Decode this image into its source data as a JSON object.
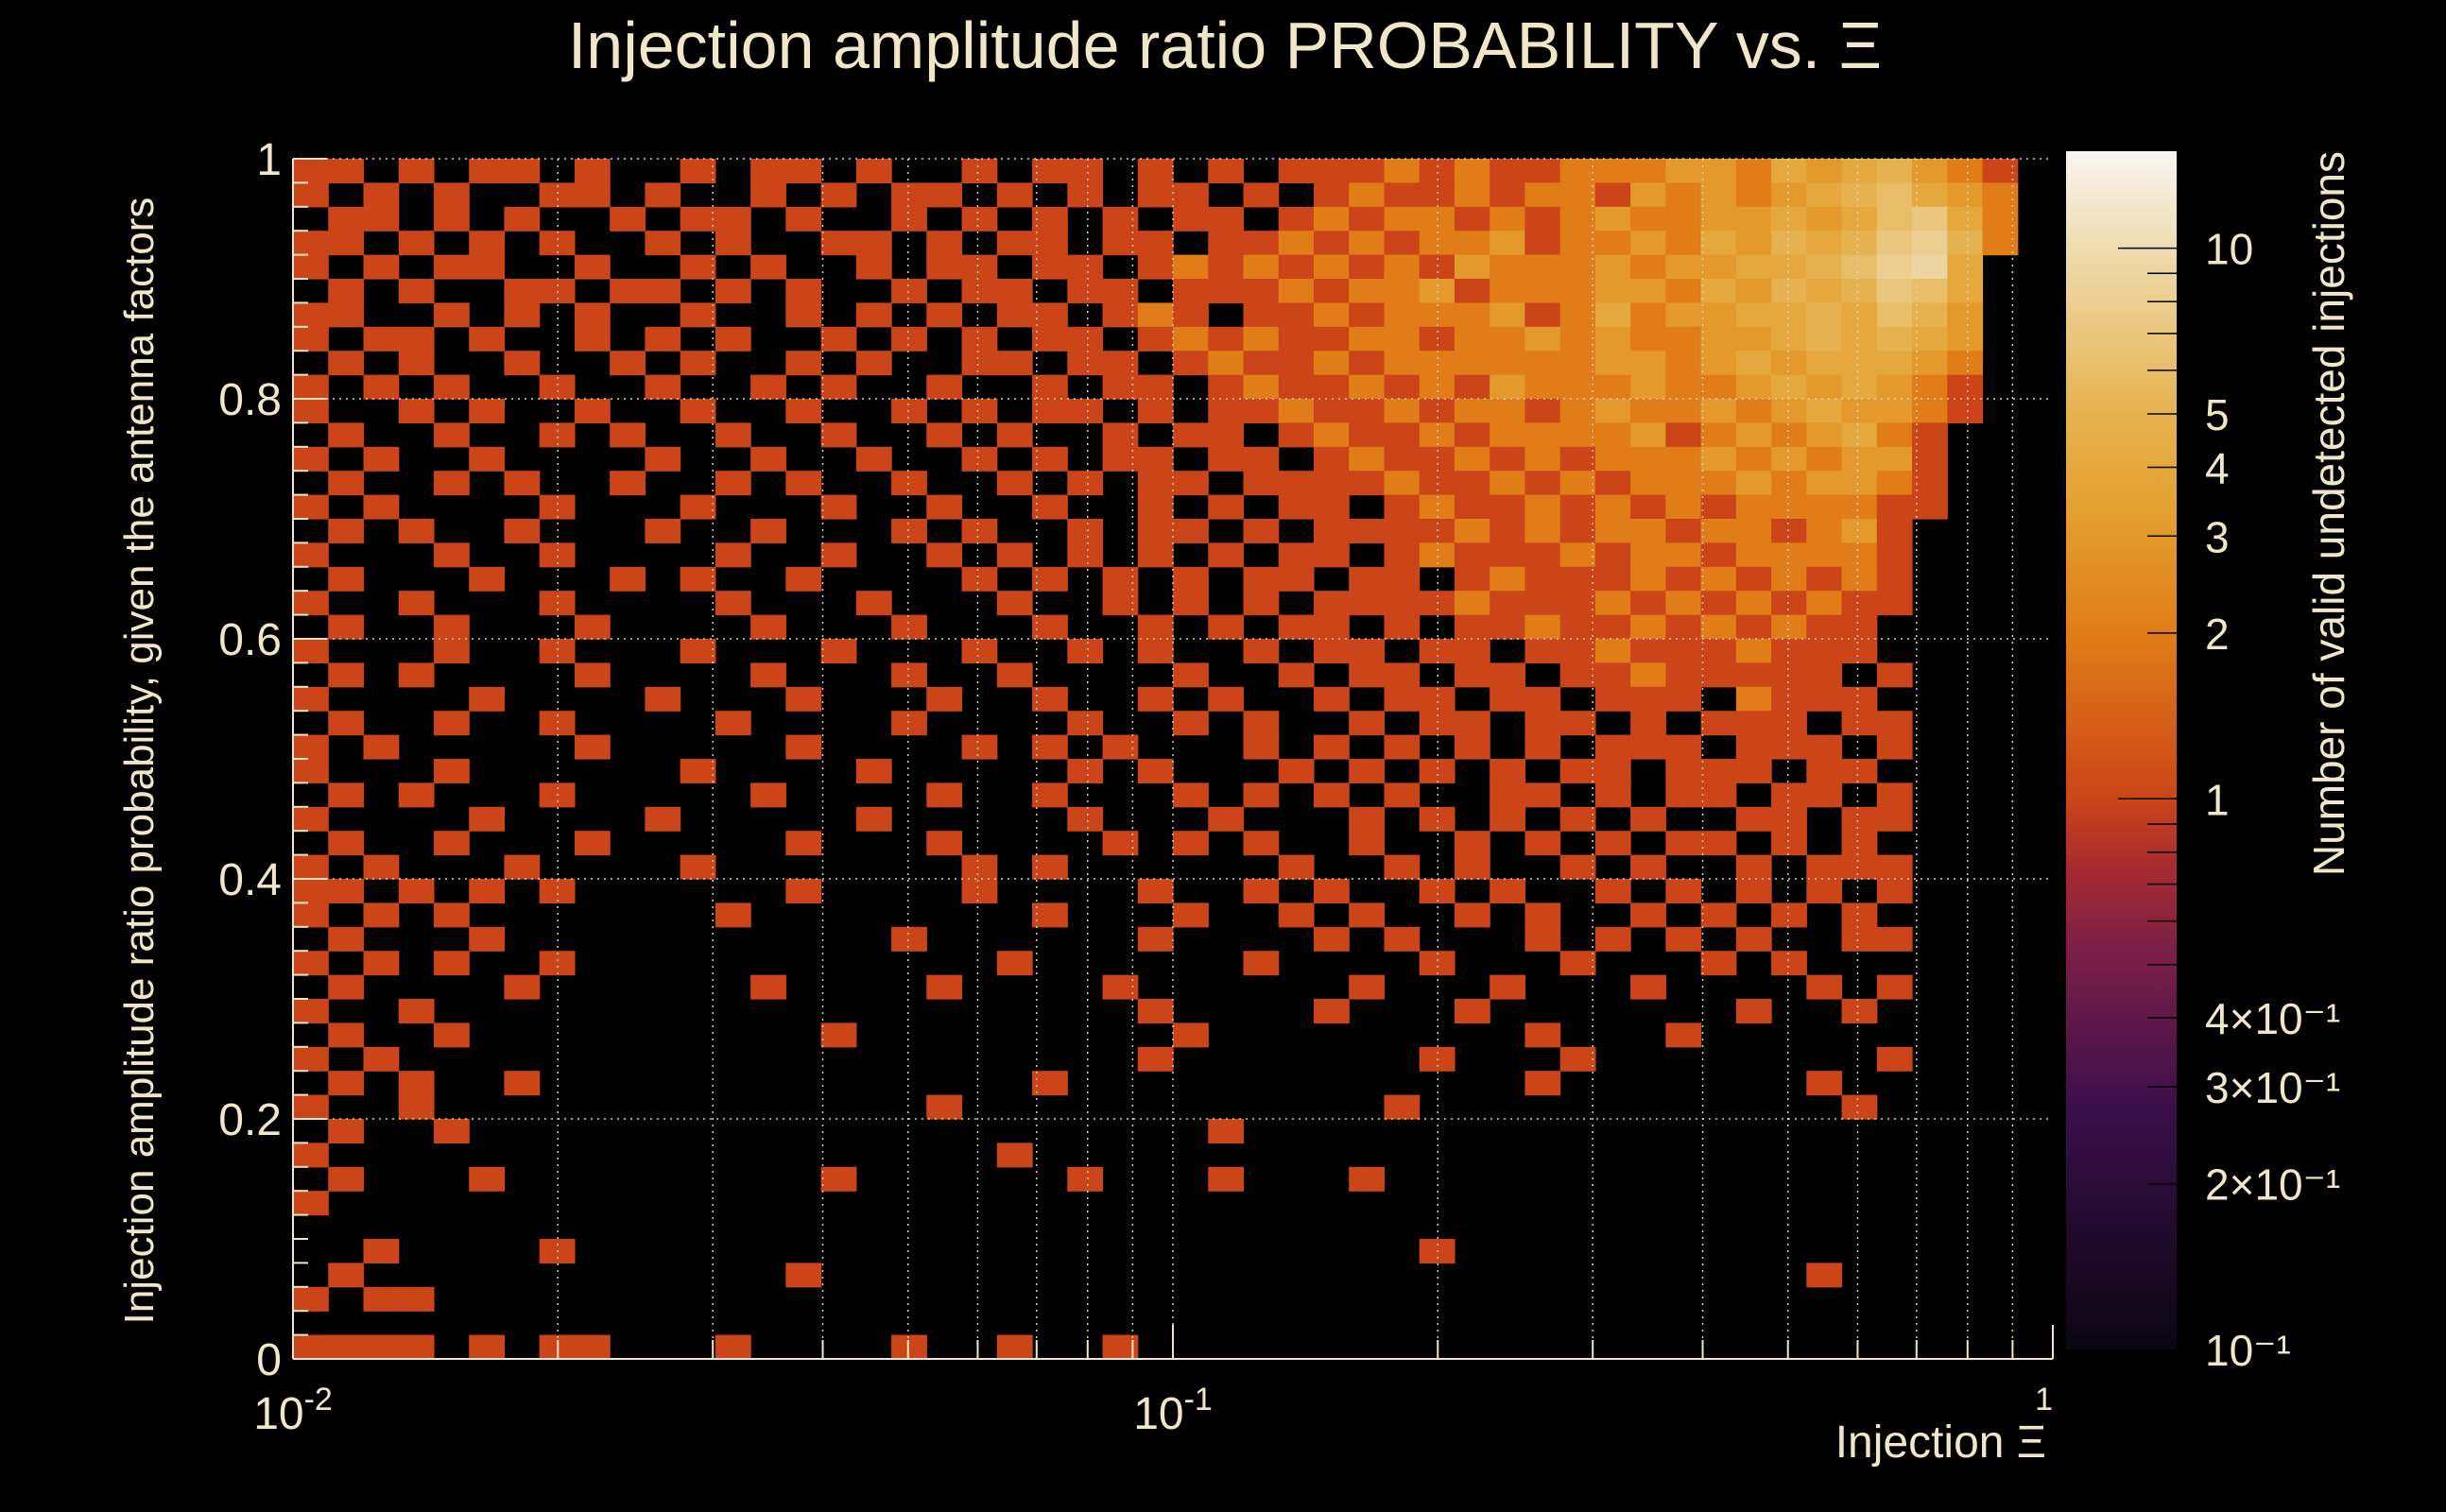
{
  "chart_data": {
    "type": "heatmap",
    "title": "Injection amplitude ratio PROBABILITY vs.  Ξ",
    "xlabel": "Injection Ξ",
    "ylabel": "Injection amplitude ratio probability, given the antenna factors",
    "zlabel": "Number of valid undetected injections",
    "x_scale": "log",
    "xlim": [
      0.01,
      1
    ],
    "ylim": [
      0,
      1
    ],
    "z_scale": "log",
    "zlim": [
      0.1,
      15
    ],
    "grid": true,
    "x_bins": 50,
    "y_bins": 50,
    "x_ticks": [
      {
        "value": 0.01,
        "base": "10",
        "exp": "-2"
      },
      {
        "value": 0.1,
        "base": "10",
        "exp": "-1"
      },
      {
        "value": 1,
        "base": "",
        "exp": "1"
      }
    ],
    "y_ticks": [
      {
        "value": 0,
        "label": "0"
      },
      {
        "value": 0.2,
        "label": "0.2"
      },
      {
        "value": 0.4,
        "label": "0.4"
      },
      {
        "value": 0.6,
        "label": "0.6"
      },
      {
        "value": 0.8,
        "label": "0.8"
      },
      {
        "value": 1,
        "label": "1"
      }
    ],
    "z_ticks": [
      {
        "value": 10,
        "label": "10"
      },
      {
        "value": 5,
        "label": "5"
      },
      {
        "value": 4,
        "label": "4"
      },
      {
        "value": 3,
        "label": "3"
      },
      {
        "value": 2,
        "label": "2"
      },
      {
        "value": 1,
        "label": "1"
      },
      {
        "value": 0.4,
        "label": "4×10⁻¹"
      },
      {
        "value": 0.3,
        "label": "3×10⁻¹"
      },
      {
        "value": 0.2,
        "label": "2×10⁻¹"
      },
      {
        "value": 0.1,
        "label": "10⁻¹"
      }
    ],
    "counts_rows_top_to_bottom": [
      "11010110100101101001011010101112121122233243453210",
      "10101001101001010110101011010121121221323234564320",
      "01101010010110100101010101101212212123223343467420",
      "11010101001010011010110110112121223122324354578520",
      "10101100100101001011011012121212132223233445689400",
      "01010011011010100101101101112122312223324354576400",
      "11001010100100101010110121011212223124233445465300",
      "10110100101010010101011012121122122323223345454300",
      "01010010010100101001101101211212222223323434443200",
      "10101001001001010010010110121121213222322343432100",
      "10010100100100100101011010112112122123223234332100",
      "01001001010010010010100101101211212222312323421000",
      "10100100001001001001010110110121121212223232331000",
      "01001010010010100100101011011112112121222323321000",
      "10100001000100010010010010101101211212121222211000",
      "01010010001001000101001011010111121212212212310000",
      "10001001000010010010101010101101211121221222210000",
      "01000100010100100001010101011011012111212121210000",
      "10010001000010001000100101010111121112121212110000",
      "01001000100001000100010010101101011211212121100000",
      "10001001000100010001001010010110110112111211100000",
      "01010000100001000100100001001011011011211111010000",
      "10000100001000100010010010100101101101110211100000",
      "01001001000010000100001001010010110110101110110000",
      "10100000100000100001010100010101010101110111010000",
      "10001000000100001000001010001010101011011101100000",
      "01010001000001000010010001010101001101011011010000",
      "10000100001000001000001000100010101010100110110000",
      "01001000100000100010000101010010010101011010100000",
      "10100010000100000001010000001001010010100101110000",
      "11010101000000100001000010010100101001010101010000",
      "10101000000010000000010001001010010100101010100000",
      "01000100000000000100000010000101000101010100110000",
      "10101001000000000000100000010000100010001010000000",
      "01000010000001000010000100000010001000100001010000",
      "10010000000000000000000010000100010000000100100000",
      "01001000000000010000000001000000000100010000000000",
      "10100000000000000000000010000000100010000000010000",
      "01010010000000000000010000000000000100000001000000",
      "10010000000000000010000000000001000000000000100000",
      "01001000000000000000000000100000000000000000000000",
      "10000000000000000000100000000000000000000000000000",
      "01000100000000010000001000100010000000000000000000",
      "10000000000000000000000000000000000000000000000000",
      "00000000000000000000000000000000000000000000000000",
      "00100001000000000000000000000000100000000000000000",
      "01000000000000100000000000000000000000000001000000",
      "10110000000000000000000000000000000000000000000000",
      "00000000000000000000000000000000000000000000000000",
      "11110101100010000100100100000000000000000000000000"
    ]
  },
  "colors": {
    "background": "#000000",
    "text": "#f0e6c8",
    "palette_stops": [
      [
        0,
        "#0a0610"
      ],
      [
        0.2,
        "#3a0f4a"
      ],
      [
        0.33,
        "#7a1f48"
      ],
      [
        0.4,
        "#a52a30"
      ],
      [
        0.46,
        "#cc4518"
      ],
      [
        0.6,
        "#e07e18"
      ],
      [
        0.7,
        "#e4a030"
      ],
      [
        0.78,
        "#e6b24e"
      ],
      [
        0.92,
        "#eedcb0"
      ],
      [
        1,
        "#f8f6f2"
      ]
    ]
  }
}
